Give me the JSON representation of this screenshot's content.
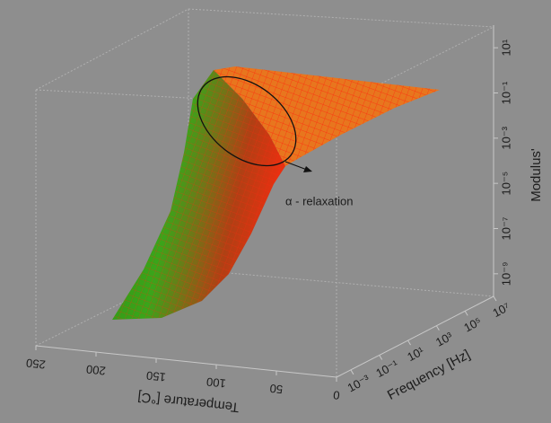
{
  "chart_data": {
    "type": "surface3d",
    "x_label": "Temperature [°C]",
    "xlim": [
      0,
      250
    ],
    "xticks": [
      0,
      50,
      100,
      150,
      200,
      250
    ],
    "xscale": "linear",
    "y_label": "Frequency [Hz]",
    "ylim": [
      0.0001,
      10000000
    ],
    "yscale": "log",
    "yticks": [
      {
        "value": 0.001,
        "label": "10⁻³"
      },
      {
        "value": 0.1,
        "label": "10⁻¹"
      },
      {
        "value": 10,
        "label": "10¹"
      },
      {
        "value": 1000,
        "label": "10³"
      },
      {
        "value": 100000,
        "label": "10⁵"
      },
      {
        "value": 10000000,
        "label": "10⁷"
      }
    ],
    "z_label": "Modulus'",
    "zlim": [
      1e-10,
      100
    ],
    "zscale": "log",
    "zticks": [
      {
        "value": 1e-09,
        "label": "10⁻⁹"
      },
      {
        "value": 1e-07,
        "label": "10⁻⁷"
      },
      {
        "value": 1e-05,
        "label": "10⁻⁵"
      },
      {
        "value": 0.001,
        "label": "10⁻³"
      },
      {
        "value": 0.1,
        "label": "10⁻¹"
      },
      {
        "value": 10,
        "label": "10¹"
      }
    ],
    "annotation": "α - relaxation"
  }
}
